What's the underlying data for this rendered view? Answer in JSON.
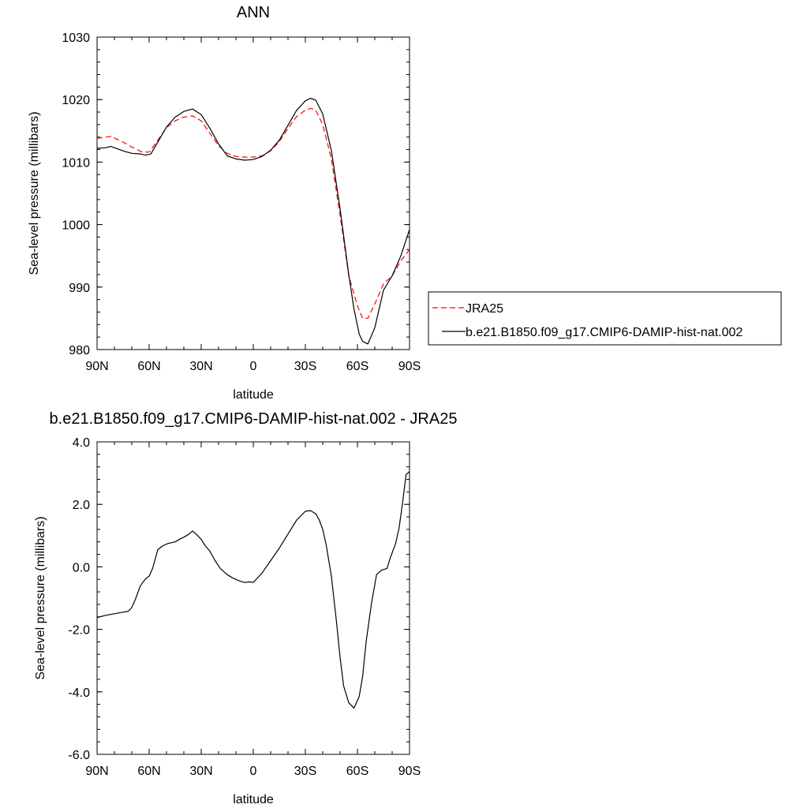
{
  "chart_data": [
    {
      "type": "line",
      "title": "ANN",
      "xlabel": "latitude",
      "ylabel": "Sea-level pressure (millibars)",
      "xlim": [
        -90,
        90
      ],
      "ylim": [
        980,
        1030
      ],
      "x_ticks": [
        -90,
        -60,
        -30,
        0,
        30,
        60,
        90
      ],
      "x_tick_labels": [
        "90N",
        "60N",
        "30N",
        "0",
        "30S",
        "60S",
        "90S"
      ],
      "y_ticks": [
        980,
        990,
        1000,
        1010,
        1020,
        1030
      ],
      "y_tick_labels": [
        "980",
        "990",
        "1000",
        "1010",
        "1020",
        "1030"
      ],
      "grid": false,
      "legend": "right",
      "series": [
        {
          "name": "JRA25",
          "color": "#ff0000",
          "dash": "dashed",
          "x": [
            -90,
            -82,
            -75,
            -70,
            -64,
            -60,
            -55,
            -50,
            -45,
            -40,
            -35,
            -30,
            -25,
            -20,
            -15,
            -10,
            -5,
            0,
            5,
            10,
            15,
            20,
            25,
            30,
            33,
            36,
            40,
            45,
            50,
            55,
            60,
            63,
            66,
            70,
            75,
            80,
            85,
            90
          ],
          "y": [
            1013.8,
            1014.1,
            1013.2,
            1012.4,
            1011.6,
            1011.6,
            1013.5,
            1015.5,
            1016.6,
            1017.2,
            1017.4,
            1016.6,
            1014.6,
            1012.6,
            1011.4,
            1010.9,
            1010.8,
            1010.8,
            1011.0,
            1011.8,
            1013.3,
            1015.4,
            1017.3,
            1018.3,
            1018.6,
            1018.3,
            1016.0,
            1010.5,
            1001.5,
            991.8,
            987.0,
            985.0,
            985.0,
            987.3,
            990.5,
            991.8,
            994.2,
            996.0
          ]
        },
        {
          "name": "b.e21.B1850.f09_g17.CMIP6-DAMIP-hist-nat.002",
          "color": "#000000",
          "dash": "solid",
          "x": [
            -90,
            -85,
            -82,
            -78,
            -74,
            -70,
            -65,
            -62,
            -59,
            -55,
            -50,
            -45,
            -40,
            -35,
            -30,
            -25,
            -20,
            -15,
            -10,
            -5,
            0,
            5,
            10,
            15,
            20,
            25,
            30,
            33,
            36,
            40,
            45,
            50,
            55,
            58,
            61,
            63,
            66,
            70,
            75,
            80,
            85,
            90
          ],
          "y": [
            1012.2,
            1012.3,
            1012.5,
            1012.1,
            1011.7,
            1011.4,
            1011.3,
            1011.1,
            1011.3,
            1013.2,
            1015.6,
            1017.2,
            1018.1,
            1018.5,
            1017.6,
            1015.4,
            1012.9,
            1011.0,
            1010.5,
            1010.3,
            1010.4,
            1010.9,
            1011.9,
            1013.5,
            1015.9,
            1018.3,
            1019.8,
            1020.2,
            1019.9,
            1017.7,
            1011.8,
            1002.5,
            992.0,
            986.5,
            982.5,
            981.3,
            980.9,
            983.5,
            989.5,
            991.8,
            995.0,
            999.2
          ]
        }
      ]
    },
    {
      "type": "line",
      "title": "b.e21.B1850.f09_g17.CMIP6-DAMIP-hist-nat.002 - JRA25",
      "xlabel": "latitude",
      "ylabel": "Sea-level pressure (millibars)",
      "xlim": [
        -90,
        90
      ],
      "ylim": [
        -6.0,
        4.0
      ],
      "x_ticks": [
        -90,
        -60,
        -30,
        0,
        30,
        60,
        90
      ],
      "x_tick_labels": [
        "90N",
        "60N",
        "30N",
        "0",
        "30S",
        "60S",
        "90S"
      ],
      "y_ticks": [
        -6.0,
        -4.0,
        -2.0,
        0.0,
        2.0,
        4.0
      ],
      "y_tick_labels": [
        "-6.0",
        "-4.0",
        "-2.0",
        "0.0",
        "2.0",
        "4.0"
      ],
      "grid": false,
      "series": [
        {
          "color": "#000000",
          "dash": "solid",
          "x": [
            -90,
            -85,
            -80,
            -75,
            -72,
            -70,
            -68,
            -65,
            -62,
            -60,
            -58,
            -55,
            -52,
            -49,
            -45,
            -42,
            -40,
            -37,
            -35,
            -32,
            -30,
            -28,
            -25,
            -22,
            -19,
            -15,
            -12,
            -8,
            -5,
            -2,
            0,
            2,
            5,
            10,
            15,
            20,
            25,
            30,
            33,
            36,
            38,
            40,
            42,
            45,
            48,
            50,
            52,
            55,
            58,
            61,
            63,
            65,
            68,
            71,
            74,
            77,
            79,
            82,
            84,
            86,
            88,
            90
          ],
          "y": [
            -1.62,
            -1.55,
            -1.5,
            -1.45,
            -1.42,
            -1.3,
            -1.05,
            -0.6,
            -0.38,
            -0.3,
            -0.05,
            0.55,
            0.68,
            0.75,
            0.8,
            0.9,
            0.95,
            1.05,
            1.15,
            1.0,
            0.88,
            0.7,
            0.5,
            0.2,
            -0.05,
            -0.25,
            -0.35,
            -0.45,
            -0.5,
            -0.48,
            -0.5,
            -0.38,
            -0.2,
            0.2,
            0.6,
            1.05,
            1.5,
            1.78,
            1.8,
            1.7,
            1.5,
            1.2,
            0.7,
            -0.3,
            -1.8,
            -2.9,
            -3.8,
            -4.35,
            -4.52,
            -4.15,
            -3.5,
            -2.4,
            -1.2,
            -0.25,
            -0.1,
            -0.05,
            0.3,
            0.75,
            1.25,
            2.05,
            2.95,
            3.05
          ]
        }
      ]
    }
  ]
}
